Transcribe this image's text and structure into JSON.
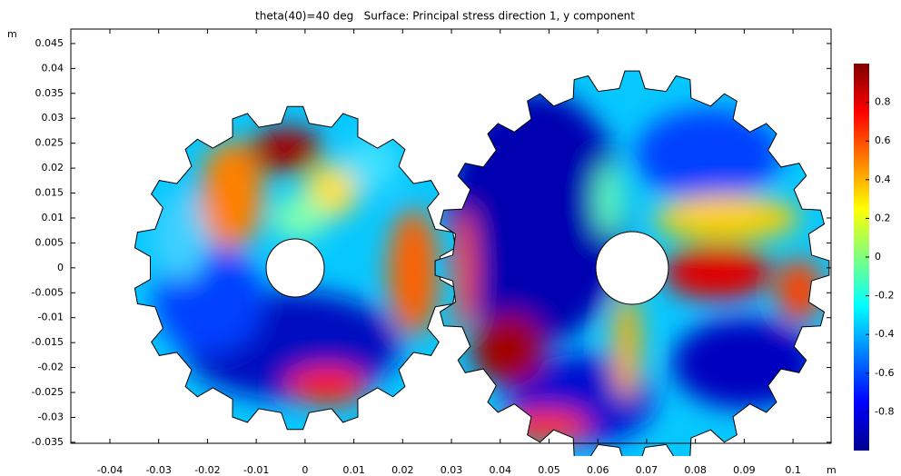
{
  "chart_data": {
    "type": "surface",
    "title": "theta(40)=40 deg   Surface: Principal stress direction 1, y component",
    "x_unit": "m",
    "y_unit": "m",
    "xlim": [
      -0.048,
      0.1078
    ],
    "ylim": [
      -0.0352,
      0.0479
    ],
    "xticks": [
      -0.04,
      -0.03,
      -0.02,
      -0.01,
      0,
      0.01,
      0.02,
      0.03,
      0.04,
      0.05,
      0.06,
      0.07,
      0.08,
      0.09,
      0.1
    ],
    "yticks": [
      -0.035,
      -0.03,
      -0.025,
      -0.02,
      -0.015,
      -0.01,
      -0.005,
      0,
      0.005,
      0.01,
      0.015,
      0.02,
      0.025,
      0.03,
      0.035,
      0.04,
      0.045
    ],
    "colorbar": {
      "colormap": "jet",
      "clim": [
        -1,
        1
      ],
      "ticks": [
        -0.8,
        -0.6,
        -0.4,
        -0.2,
        0,
        0.2,
        0.4,
        0.6,
        0.8
      ]
    }
  }
}
